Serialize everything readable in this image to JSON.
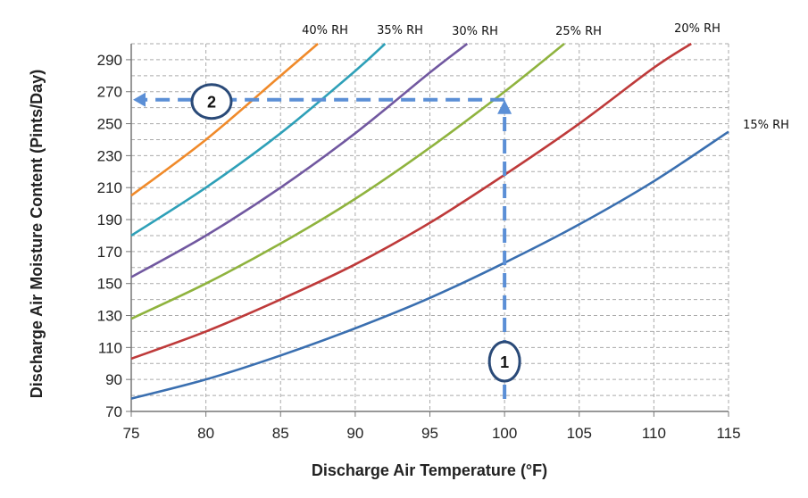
{
  "chart_data": {
    "type": "line",
    "title": "",
    "xlabel": "Discharge Air Temperature (°F)",
    "ylabel": "Discharge Air Moisture Content (Pints/Day)",
    "xlim": [
      75,
      115
    ],
    "ylim": [
      70,
      300
    ],
    "xticks": [
      75,
      80,
      85,
      90,
      95,
      100,
      105,
      110,
      115
    ],
    "yticks": [
      70,
      90,
      110,
      130,
      150,
      170,
      190,
      210,
      230,
      250,
      270,
      290
    ],
    "grid": true,
    "series": [
      {
        "name": "15% RH",
        "color": "#3a6fb0",
        "x": [
          75,
          80,
          85,
          90,
          95,
          100,
          105,
          110,
          115
        ],
        "y": [
          78,
          90,
          105,
          122,
          141,
          163,
          187,
          214,
          245
        ]
      },
      {
        "name": "20% RH",
        "color": "#be3a3a",
        "x": [
          75,
          80,
          85,
          90,
          95,
          100,
          105,
          110,
          112.5
        ],
        "y": [
          103,
          120,
          140,
          162,
          188,
          218,
          250,
          285,
          300
        ]
      },
      {
        "name": "25% RH",
        "color": "#8fb33e",
        "x": [
          75,
          80,
          85,
          90,
          95,
          100,
          104
        ],
        "y": [
          128,
          150,
          175,
          203,
          235,
          270,
          300
        ]
      },
      {
        "name": "30% RH",
        "color": "#7158a0",
        "x": [
          75,
          80,
          85,
          90,
          95,
          97.5
        ],
        "y": [
          154,
          180,
          210,
          244,
          282,
          300
        ]
      },
      {
        "name": "35% RH",
        "color": "#2ea0b8",
        "x": [
          75,
          80,
          85,
          90,
          92
        ],
        "y": [
          180,
          210,
          244,
          283,
          300
        ]
      },
      {
        "name": "40% RH",
        "color": "#f08a2a",
        "x": [
          75,
          80,
          85,
          87.5
        ],
        "y": [
          205,
          240,
          280,
          300
        ]
      }
    ],
    "annotations": [
      {
        "label": "1",
        "type": "vertical-arrow",
        "x": 100,
        "from_y": 70,
        "to_y": 265
      },
      {
        "label": "2",
        "type": "horizontal-arrow",
        "y": 265,
        "from_x": 100,
        "to_x": 75
      }
    ],
    "annotation_color": "#5b8fd6"
  }
}
